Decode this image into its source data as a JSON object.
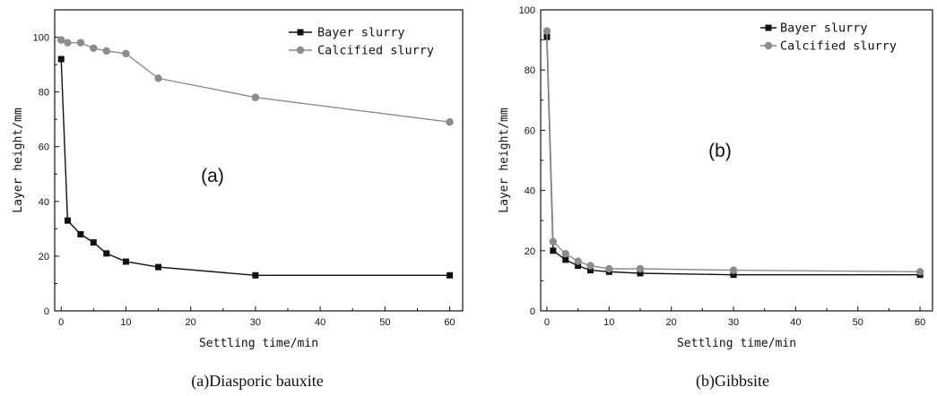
{
  "chart_data": [
    {
      "type": "line",
      "panel_label": "(a)",
      "caption": "(a)Diasporic bauxite",
      "xlabel": "Settling time/min",
      "ylabel": "Layer height/mm",
      "xlim": [
        -1,
        62
      ],
      "ylim": [
        0,
        110
      ],
      "xticks": [
        0,
        10,
        20,
        30,
        40,
        50,
        60
      ],
      "yticks": [
        0,
        20,
        40,
        60,
        80,
        100
      ],
      "legend_position": "top-right",
      "series": [
        {
          "name": "Bayer slurry",
          "marker": "square",
          "color": "#111111",
          "x": [
            0,
            1,
            3,
            5,
            7,
            10,
            15,
            30,
            60
          ],
          "y": [
            92,
            33,
            28,
            25,
            21,
            18,
            16,
            13,
            13
          ]
        },
        {
          "name": "Calcified slurry",
          "marker": "circle",
          "color": "#8c8c8c",
          "x": [
            0,
            1,
            3,
            5,
            7,
            10,
            15,
            30,
            60
          ],
          "y": [
            99,
            98,
            98,
            96,
            95,
            94,
            85,
            78,
            69
          ]
        }
      ]
    },
    {
      "type": "line",
      "panel_label": "(b)",
      "caption": "(b)Gibbsite",
      "xlabel": "Settling time/min",
      "ylabel": "Layer height/mm",
      "xlim": [
        -1,
        62
      ],
      "ylim": [
        0,
        100
      ],
      "xticks": [
        0,
        10,
        20,
        30,
        40,
        50,
        60
      ],
      "yticks": [
        0,
        20,
        40,
        60,
        80,
        100
      ],
      "legend_position": "top-right",
      "series": [
        {
          "name": "Bayer slurry",
          "marker": "square",
          "color": "#111111",
          "x": [
            0,
            1,
            3,
            5,
            7,
            10,
            15,
            30,
            60
          ],
          "y": [
            91,
            20,
            17,
            15,
            13.5,
            13,
            12.5,
            12,
            12
          ]
        },
        {
          "name": "Calcified slurry",
          "marker": "circle",
          "color": "#8c8c8c",
          "x": [
            0,
            1,
            3,
            5,
            7,
            10,
            15,
            30,
            60
          ],
          "y": [
            93,
            23,
            19,
            16.5,
            15,
            14,
            14,
            13.5,
            13
          ]
        }
      ]
    }
  ]
}
